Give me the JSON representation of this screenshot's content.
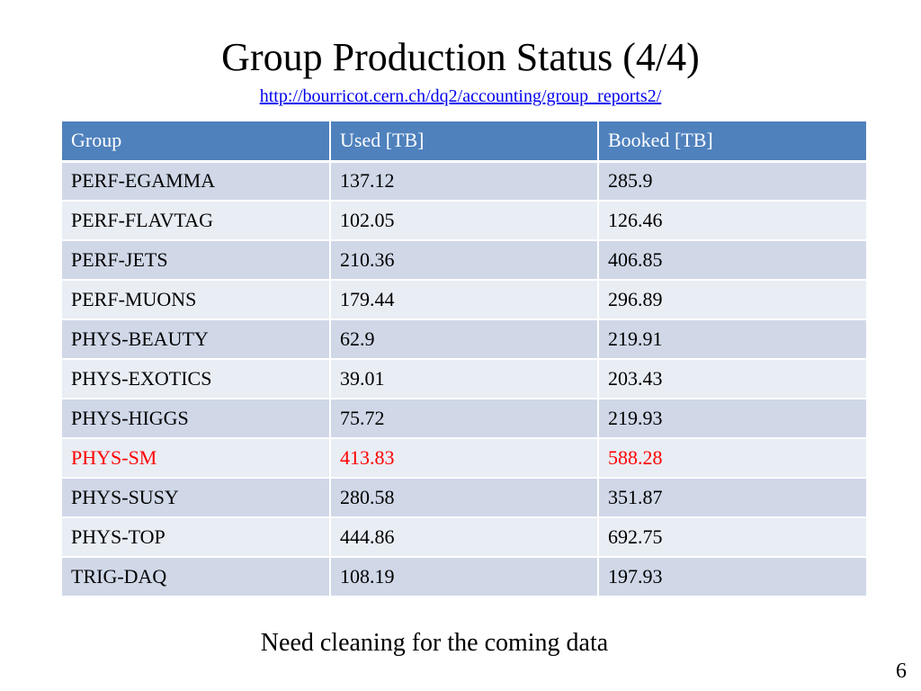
{
  "slide": {
    "title": "Group Production Status (4/4)",
    "link": "http://bourricot.cern.ch/dq2/accounting/group_reports2/",
    "note": "Need cleaning for the coming data",
    "page_number": "6"
  },
  "colors": {
    "header_bg": "#4f81bd",
    "row_odd_bg": "#d0d8e8",
    "row_even_bg": "#e9edf4",
    "highlight_text": "#ff0000",
    "link": "#0000ee"
  },
  "table": {
    "headers": [
      "Group",
      "Used [TB]",
      "Booked [TB]"
    ],
    "rows": [
      {
        "group": "PERF-EGAMMA",
        "used": "137.12",
        "booked": "285.9",
        "highlight": false
      },
      {
        "group": "PERF-FLAVTAG",
        "used": "102.05",
        "booked": "126.46",
        "highlight": false
      },
      {
        "group": "PERF-JETS",
        "used": "210.36",
        "booked": "406.85",
        "highlight": false
      },
      {
        "group": "PERF-MUONS",
        "used": "179.44",
        "booked": "296.89",
        "highlight": false
      },
      {
        "group": "PHYS-BEAUTY",
        "used": "62.9",
        "booked": "219.91",
        "highlight": false
      },
      {
        "group": "PHYS-EXOTICS",
        "used": "39.01",
        "booked": "203.43",
        "highlight": false
      },
      {
        "group": "PHYS-HIGGS",
        "used": "75.72",
        "booked": "219.93",
        "highlight": false
      },
      {
        "group": "PHYS-SM",
        "used": "413.83",
        "booked": "588.28",
        "highlight": true
      },
      {
        "group": "PHYS-SUSY",
        "used": "280.58",
        "booked": "351.87",
        "highlight": false
      },
      {
        "group": "PHYS-TOP",
        "used": "444.86",
        "booked": "692.75",
        "highlight": false
      },
      {
        "group": "TRIG-DAQ",
        "used": "108.19",
        "booked": "197.93",
        "highlight": false
      }
    ]
  }
}
